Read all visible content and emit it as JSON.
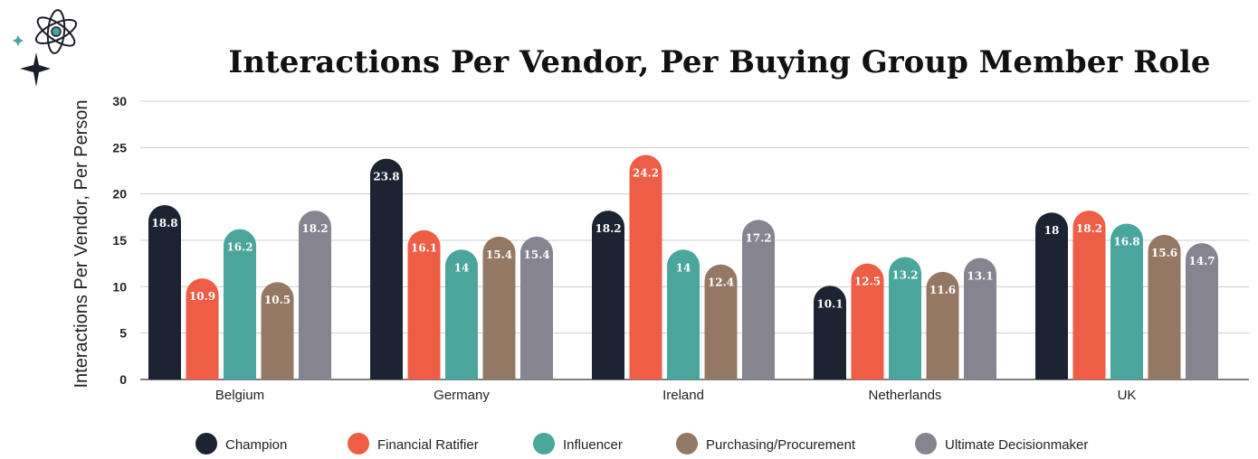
{
  "chart_data": {
    "type": "bar",
    "title": "Interactions Per Vendor, Per Buying Group Member Role",
    "xlabel": "",
    "ylabel": "Interactions Per Vendor, Per Person",
    "ylim": [
      0,
      30
    ],
    "yticks": [
      0,
      5,
      10,
      15,
      20,
      25,
      30
    ],
    "grid": true,
    "legend_position": "bottom",
    "categories": [
      "Belgium",
      "Germany",
      "Ireland",
      "Netherlands",
      "UK"
    ],
    "series": [
      {
        "name": "Champion",
        "color": "#1c2333",
        "values": [
          18.8,
          23.8,
          18.2,
          10.1,
          18
        ]
      },
      {
        "name": "Financial Ratifier",
        "color": "#ee5d45",
        "values": [
          10.9,
          16.1,
          24.2,
          12.5,
          18.2
        ]
      },
      {
        "name": "Influencer",
        "color": "#4aa59c",
        "values": [
          16.2,
          14,
          14,
          13.2,
          16.8
        ]
      },
      {
        "name": "Purchasing/Procurement",
        "color": "#957863",
        "values": [
          10.5,
          15.4,
          12.4,
          11.6,
          15.6
        ]
      },
      {
        "name": "Ultimate Decisionmaker",
        "color": "#858490",
        "values": [
          18.2,
          15.4,
          17.2,
          13.1,
          14.7
        ]
      }
    ]
  },
  "logo": {
    "icon": "atom-sparkle-icon"
  }
}
